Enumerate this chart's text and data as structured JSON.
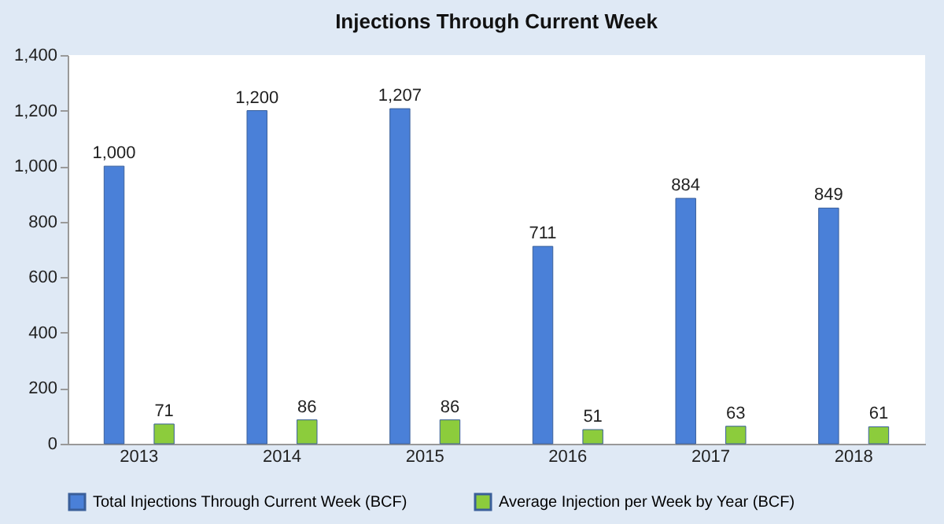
{
  "chart_data": {
    "type": "bar",
    "title": "Injections Through Current Week",
    "categories": [
      "2013",
      "2014",
      "2015",
      "2016",
      "2017",
      "2018"
    ],
    "series": [
      {
        "name": "Total Injections Through Current Week (BCF)",
        "color": "#4a80d8",
        "values": [
          1000,
          1200,
          1207,
          711,
          884,
          849
        ],
        "value_labels": [
          "1,000",
          "1,200",
          "1,207",
          "711",
          "884",
          "849"
        ]
      },
      {
        "name": "Average Injection per Week by Year (BCF)",
        "color": "#8ccc3c",
        "values": [
          71,
          86,
          86,
          51,
          63,
          61
        ],
        "value_labels": [
          "71",
          "86",
          "86",
          "51",
          "63",
          "61"
        ]
      }
    ],
    "ylim": [
      0,
      1400
    ],
    "yticks": [
      0,
      200,
      400,
      600,
      800,
      {
        "value": 1000,
        "label": "1,000"
      },
      {
        "value": 1200,
        "label": "1,200"
      },
      {
        "value": 1400,
        "label": "1,400"
      }
    ],
    "grid": false,
    "legend": "bottom"
  }
}
